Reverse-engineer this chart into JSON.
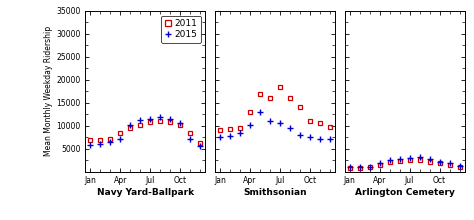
{
  "months_numeric": [
    1,
    2,
    3,
    4,
    5,
    6,
    7,
    8,
    9,
    10,
    11,
    12
  ],
  "month_labels": [
    "Jan",
    "Apr",
    "Jul",
    "Oct"
  ],
  "month_ticks": [
    1,
    4,
    7,
    10
  ],
  "navy_yard_2011": [
    6800,
    6900,
    7200,
    8500,
    9500,
    10200,
    10800,
    11000,
    10800,
    10200,
    8500,
    6200
  ],
  "navy_yard_2015": [
    5800,
    6000,
    6500,
    7200,
    10200,
    11200,
    11500,
    11800,
    11500,
    10500,
    7200,
    5600
  ],
  "smithsonian_2011": [
    9000,
    9200,
    9500,
    13000,
    17000,
    16000,
    18500,
    16000,
    14000,
    11000,
    10500,
    9800
  ],
  "smithsonian_2015": [
    7500,
    7800,
    8500,
    10200,
    13000,
    11000,
    10500,
    9500,
    8000,
    7500,
    7200,
    7000
  ],
  "arlington_2011": [
    800,
    850,
    900,
    1500,
    2200,
    2400,
    2500,
    2600,
    2200,
    1800,
    1400,
    1000
  ],
  "arlington_2015": [
    900,
    950,
    1000,
    1800,
    2500,
    2800,
    3000,
    3200,
    2800,
    2200,
    1800,
    1200
  ],
  "ylim": [
    0,
    35000
  ],
  "yticks": [
    0,
    5000,
    10000,
    15000,
    20000,
    25000,
    30000,
    35000
  ],
  "color_2011": "#cc0000",
  "color_2015": "#0000cc",
  "ylabel": "Mean Monthly Weekday Ridership",
  "titles": [
    "Navy Yard-Ballpark",
    "Smithsonian",
    "Arlington Cemetery"
  ],
  "background": "#ffffff"
}
